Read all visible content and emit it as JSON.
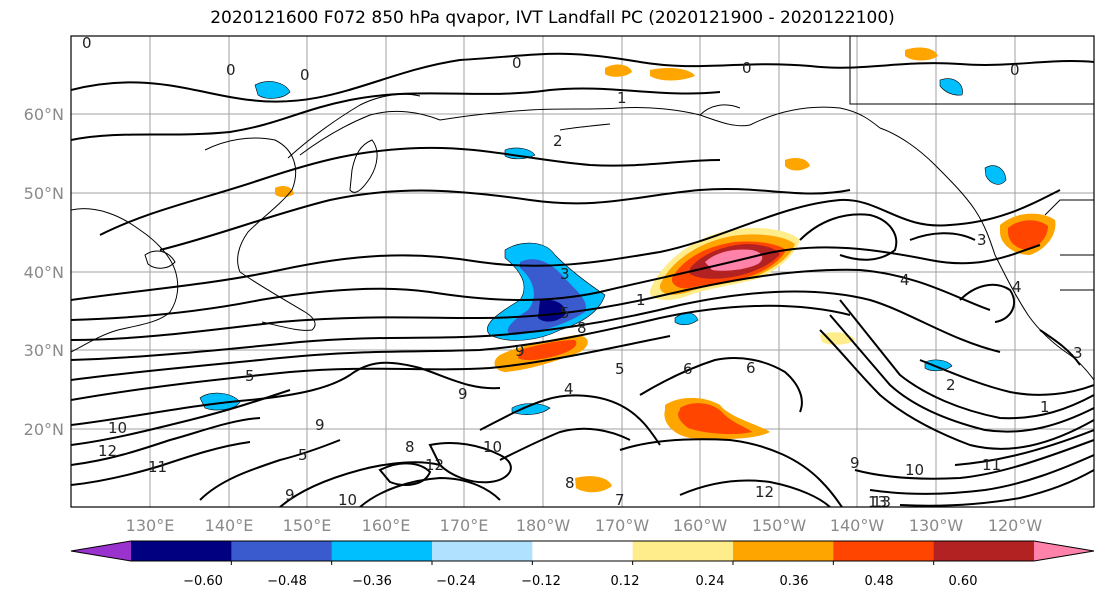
{
  "title": "2020121600 F072 850 hPa qvapor, IVT Landfall PC (2020121900 - 2020122100)",
  "lat_labels": [
    "60°N",
    "50°N",
    "40°N",
    "30°N",
    "20°N"
  ],
  "lon_labels": [
    "130°E",
    "140°E",
    "150°E",
    "160°E",
    "170°E",
    "180°W",
    "170°W",
    "160°W",
    "150°W",
    "140°W",
    "130°W",
    "120°W"
  ],
  "colorbar": {
    "ticks": [
      "−0.60",
      "−0.48",
      "−0.36",
      "−0.24",
      "−0.12",
      "0.12",
      "0.24",
      "0.36",
      "0.48",
      "0.60"
    ],
    "colors": [
      "#9a32cd",
      "#000080",
      "#3a5bcd",
      "#00bfff",
      "#b0e2ff",
      "#ffffff",
      "#ffec8b",
      "#ffa500",
      "#ff4500",
      "#b22222",
      "#ff82ab"
    ]
  },
  "contour_labels": [
    "0",
    "0",
    "0",
    "0",
    "0",
    "0",
    "1",
    "2",
    "3",
    "5",
    "8",
    "1",
    "9",
    "6",
    "5",
    "4",
    "5",
    "9",
    "4",
    "8",
    "9",
    "2",
    "6",
    "5",
    "3",
    "10",
    "13",
    "12",
    "11",
    "10",
    "9",
    "8",
    "7",
    "12",
    "10",
    "9",
    "10",
    "12",
    "11",
    "13",
    "3",
    "4",
    "1"
  ]
}
